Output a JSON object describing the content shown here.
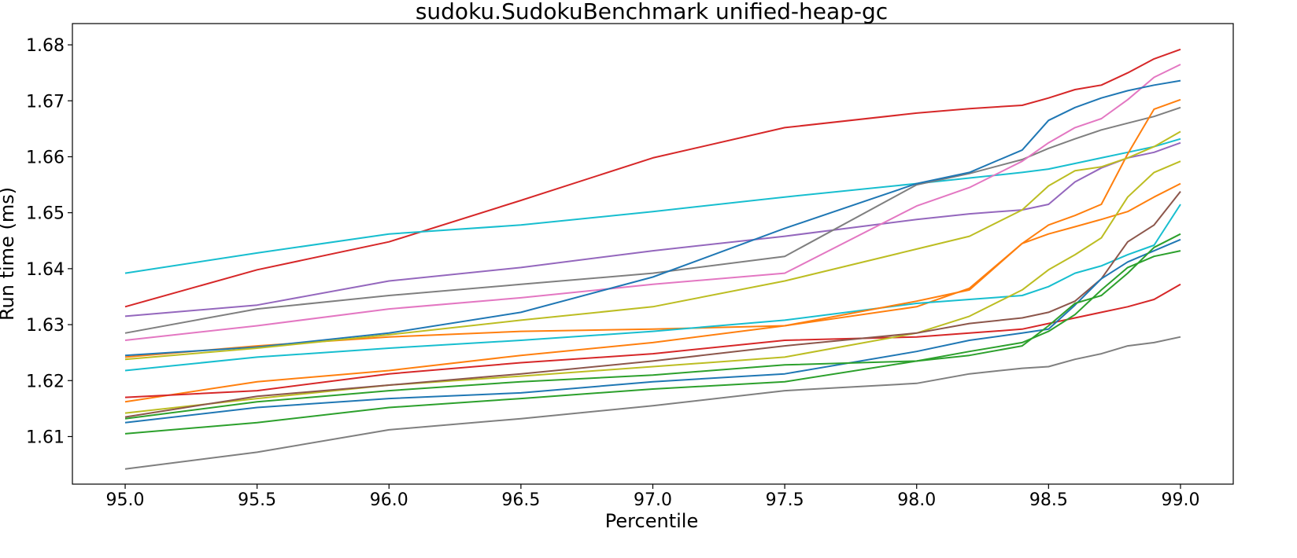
{
  "chart_data": {
    "type": "line",
    "title": "sudoku.SudokuBenchmark unified-heap-gc",
    "xlabel": "Percentile",
    "ylabel": "Run time (ms)",
    "xlim": [
      94.8,
      99.2
    ],
    "ylim": [
      1.6015,
      1.6838
    ],
    "xticks": [
      95.0,
      95.5,
      96.0,
      96.5,
      97.0,
      97.5,
      98.0,
      98.5,
      99.0
    ],
    "yticks": [
      1.61,
      1.62,
      1.63,
      1.64,
      1.65,
      1.66,
      1.67,
      1.68
    ],
    "xtick_labels": [
      "95.0",
      "95.5",
      "96.0",
      "96.5",
      "97.0",
      "97.5",
      "98.0",
      "98.5",
      "99.0"
    ],
    "ytick_labels": [
      "1.61",
      "1.62",
      "1.63",
      "1.64",
      "1.65",
      "1.66",
      "1.67",
      "1.68"
    ],
    "grid": false,
    "legend": "none",
    "x": [
      95.0,
      95.5,
      96.0,
      96.5,
      97.0,
      97.5,
      98.0,
      98.2,
      98.4,
      98.5,
      98.6,
      98.7,
      98.8,
      98.9,
      99.0
    ],
    "series": [
      {
        "color": "#d62728",
        "values": [
          1.6332,
          1.6398,
          1.6448,
          1.6522,
          1.6598,
          1.6652,
          1.6678,
          1.6686,
          1.6692,
          1.6705,
          1.672,
          1.6728,
          1.675,
          1.6775,
          1.6792
        ]
      },
      {
        "color": "#17becf",
        "values": [
          1.6392,
          1.6428,
          1.6462,
          1.6478,
          1.6502,
          1.6528,
          1.6552,
          1.6562,
          1.6572,
          1.6578,
          1.6588,
          1.6598,
          1.6608,
          1.6618,
          1.6632
        ]
      },
      {
        "color": "#9467bd",
        "values": [
          1.6315,
          1.6335,
          1.6378,
          1.6402,
          1.6432,
          1.6458,
          1.6488,
          1.6498,
          1.6505,
          1.6515,
          1.6555,
          1.658,
          1.6598,
          1.6608,
          1.6625
        ]
      },
      {
        "color": "#7f7f7f",
        "values": [
          1.6285,
          1.6328,
          1.6352,
          1.6372,
          1.6392,
          1.6422,
          1.655,
          1.657,
          1.6595,
          1.6615,
          1.6632,
          1.6648,
          1.666,
          1.6672,
          1.6688
        ]
      },
      {
        "color": "#e377c2",
        "values": [
          1.6272,
          1.6298,
          1.6328,
          1.6348,
          1.6372,
          1.6392,
          1.6512,
          1.6545,
          1.6592,
          1.6625,
          1.6652,
          1.6668,
          1.6702,
          1.6742,
          1.6765
        ]
      },
      {
        "color": "#ff7f0e",
        "values": [
          1.6242,
          1.6262,
          1.6278,
          1.6288,
          1.6292,
          1.6298,
          1.6332,
          1.6365,
          1.6445,
          1.6478,
          1.6495,
          1.6515,
          1.6605,
          1.6685,
          1.6702
        ]
      },
      {
        "color": "#1f77b4",
        "values": [
          1.6245,
          1.626,
          1.6285,
          1.6322,
          1.6385,
          1.6472,
          1.6552,
          1.6572,
          1.6612,
          1.6665,
          1.6688,
          1.6705,
          1.6718,
          1.6728,
          1.6736
        ]
      },
      {
        "color": "#bcbd22",
        "values": [
          1.6238,
          1.6258,
          1.6282,
          1.6308,
          1.6332,
          1.6378,
          1.6435,
          1.6458,
          1.6505,
          1.6548,
          1.6575,
          1.6582,
          1.6598,
          1.6618,
          1.6645
        ]
      },
      {
        "color": "#17becf",
        "values": [
          1.6218,
          1.6242,
          1.6258,
          1.6272,
          1.6288,
          1.6308,
          1.6338,
          1.6345,
          1.6352,
          1.6368,
          1.6392,
          1.6405,
          1.6425,
          1.6442,
          1.6515
        ]
      },
      {
        "color": "#ff7f0e",
        "values": [
          1.6162,
          1.6198,
          1.6218,
          1.6245,
          1.6268,
          1.6298,
          1.6342,
          1.6362,
          1.6445,
          1.6462,
          1.6475,
          1.6488,
          1.6502,
          1.6528,
          1.6552
        ]
      },
      {
        "color": "#d62728",
        "values": [
          1.617,
          1.6182,
          1.6212,
          1.6232,
          1.6248,
          1.6272,
          1.6278,
          1.6285,
          1.6292,
          1.6302,
          1.6312,
          1.6322,
          1.6332,
          1.6345,
          1.6372
        ]
      },
      {
        "color": "#bcbd22",
        "values": [
          1.6142,
          1.6168,
          1.6192,
          1.6208,
          1.6225,
          1.6242,
          1.6285,
          1.6315,
          1.6362,
          1.6398,
          1.6425,
          1.6455,
          1.6528,
          1.6572,
          1.6592
        ]
      },
      {
        "color": "#8c564b",
        "values": [
          1.6135,
          1.6172,
          1.6192,
          1.6212,
          1.6235,
          1.6262,
          1.6285,
          1.6302,
          1.6312,
          1.6322,
          1.6342,
          1.6382,
          1.6448,
          1.6478,
          1.6538
        ]
      },
      {
        "color": "#1f77b4",
        "values": [
          1.6125,
          1.6152,
          1.6168,
          1.6178,
          1.6198,
          1.6212,
          1.6252,
          1.6272,
          1.6285,
          1.6292,
          1.6335,
          1.6382,
          1.6412,
          1.6432,
          1.6452
        ]
      },
      {
        "color": "#2ca02c",
        "values": [
          1.6132,
          1.6162,
          1.6182,
          1.6198,
          1.621,
          1.6228,
          1.6235,
          1.6245,
          1.6262,
          1.6298,
          1.6338,
          1.6352,
          1.6392,
          1.6438,
          1.6462
        ]
      },
      {
        "color": "#2ca02c",
        "values": [
          1.6105,
          1.6125,
          1.6152,
          1.6168,
          1.6185,
          1.6198,
          1.6235,
          1.6252,
          1.6268,
          1.6288,
          1.6318,
          1.6362,
          1.6402,
          1.6422,
          1.6432
        ]
      },
      {
        "color": "#7f7f7f",
        "values": [
          1.6042,
          1.6072,
          1.6112,
          1.6132,
          1.6155,
          1.6182,
          1.6195,
          1.6212,
          1.6222,
          1.6225,
          1.6238,
          1.6248,
          1.6262,
          1.6268,
          1.6278
        ]
      }
    ]
  }
}
